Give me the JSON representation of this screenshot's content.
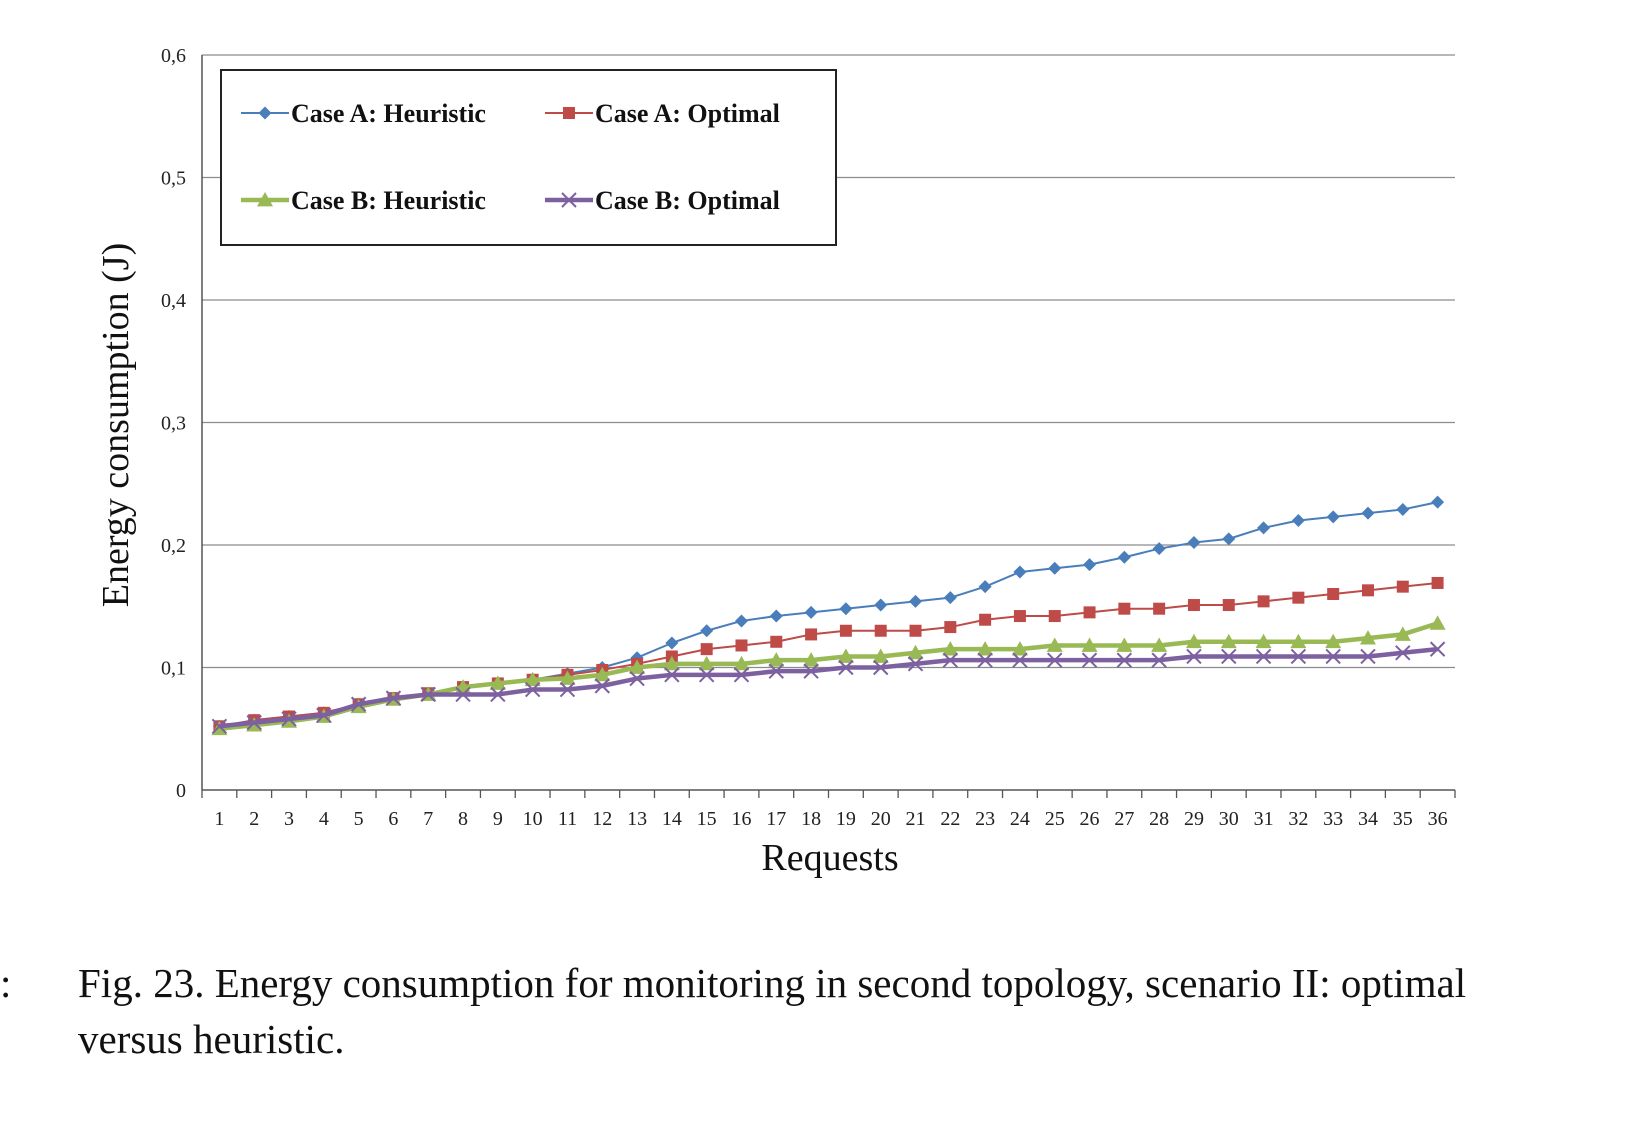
{
  "chart_data": {
    "type": "line",
    "ylabel": "Energy consumption (J)",
    "xlabel": "Requests",
    "x": [
      1,
      2,
      3,
      4,
      5,
      6,
      7,
      8,
      9,
      10,
      11,
      12,
      13,
      14,
      15,
      16,
      17,
      18,
      19,
      20,
      21,
      22,
      23,
      24,
      25,
      26,
      27,
      28,
      29,
      30,
      31,
      32,
      33,
      34,
      35,
      36
    ],
    "ylim": [
      0,
      0.6
    ],
    "yticks": [
      0,
      0.1,
      0.2,
      0.3,
      0.4,
      0.5,
      0.6
    ],
    "ytick_labels": [
      "0",
      "0,1",
      "0,2",
      "0,3",
      "0,4",
      "0,5",
      "0,6"
    ],
    "grid": "horizontal",
    "legend_position": "top-left",
    "series": [
      {
        "name": "Case A: Heuristic",
        "color": "#4a7ebb",
        "marker": "diamond",
        "values": [
          0.052,
          0.057,
          0.06,
          0.063,
          0.07,
          0.075,
          0.079,
          0.084,
          0.087,
          0.09,
          0.095,
          0.1,
          0.108,
          0.12,
          0.13,
          0.138,
          0.142,
          0.145,
          0.148,
          0.151,
          0.154,
          0.157,
          0.166,
          0.178,
          0.181,
          0.184,
          0.19,
          0.197,
          0.202,
          0.205,
          0.214,
          0.22,
          0.223,
          0.226,
          0.229,
          0.235
        ]
      },
      {
        "name": "Case A: Optimal",
        "color": "#be4b48",
        "marker": "square",
        "values": [
          0.052,
          0.057,
          0.06,
          0.063,
          0.07,
          0.075,
          0.079,
          0.084,
          0.087,
          0.09,
          0.094,
          0.098,
          0.103,
          0.109,
          0.115,
          0.118,
          0.121,
          0.127,
          0.13,
          0.13,
          0.13,
          0.133,
          0.139,
          0.142,
          0.142,
          0.145,
          0.148,
          0.148,
          0.151,
          0.151,
          0.154,
          0.157,
          0.16,
          0.163,
          0.166,
          0.169
        ]
      },
      {
        "name": "Case B: Heuristic",
        "color": "#98b954",
        "marker": "triangle",
        "values": [
          0.05,
          0.053,
          0.056,
          0.06,
          0.068,
          0.074,
          0.078,
          0.084,
          0.087,
          0.09,
          0.091,
          0.094,
          0.1,
          0.103,
          0.103,
          0.103,
          0.106,
          0.106,
          0.109,
          0.109,
          0.112,
          0.115,
          0.115,
          0.115,
          0.118,
          0.118,
          0.118,
          0.118,
          0.121,
          0.121,
          0.121,
          0.121,
          0.121,
          0.124,
          0.127,
          0.136
        ]
      },
      {
        "name": "Case B: Optimal",
        "color": "#7d60a0",
        "marker": "x",
        "values": [
          0.052,
          0.055,
          0.058,
          0.061,
          0.07,
          0.075,
          0.078,
          0.078,
          0.078,
          0.082,
          0.082,
          0.085,
          0.091,
          0.094,
          0.094,
          0.094,
          0.097,
          0.097,
          0.1,
          0.1,
          0.103,
          0.106,
          0.106,
          0.106,
          0.106,
          0.106,
          0.106,
          0.106,
          0.109,
          0.109,
          0.109,
          0.109,
          0.109,
          0.109,
          0.112,
          0.115
        ]
      }
    ]
  },
  "caption": {
    "prefix": ":",
    "text": "Fig. 23.  Energy consumption for monitoring in second topology, scenario II: optimal versus heuristic."
  }
}
